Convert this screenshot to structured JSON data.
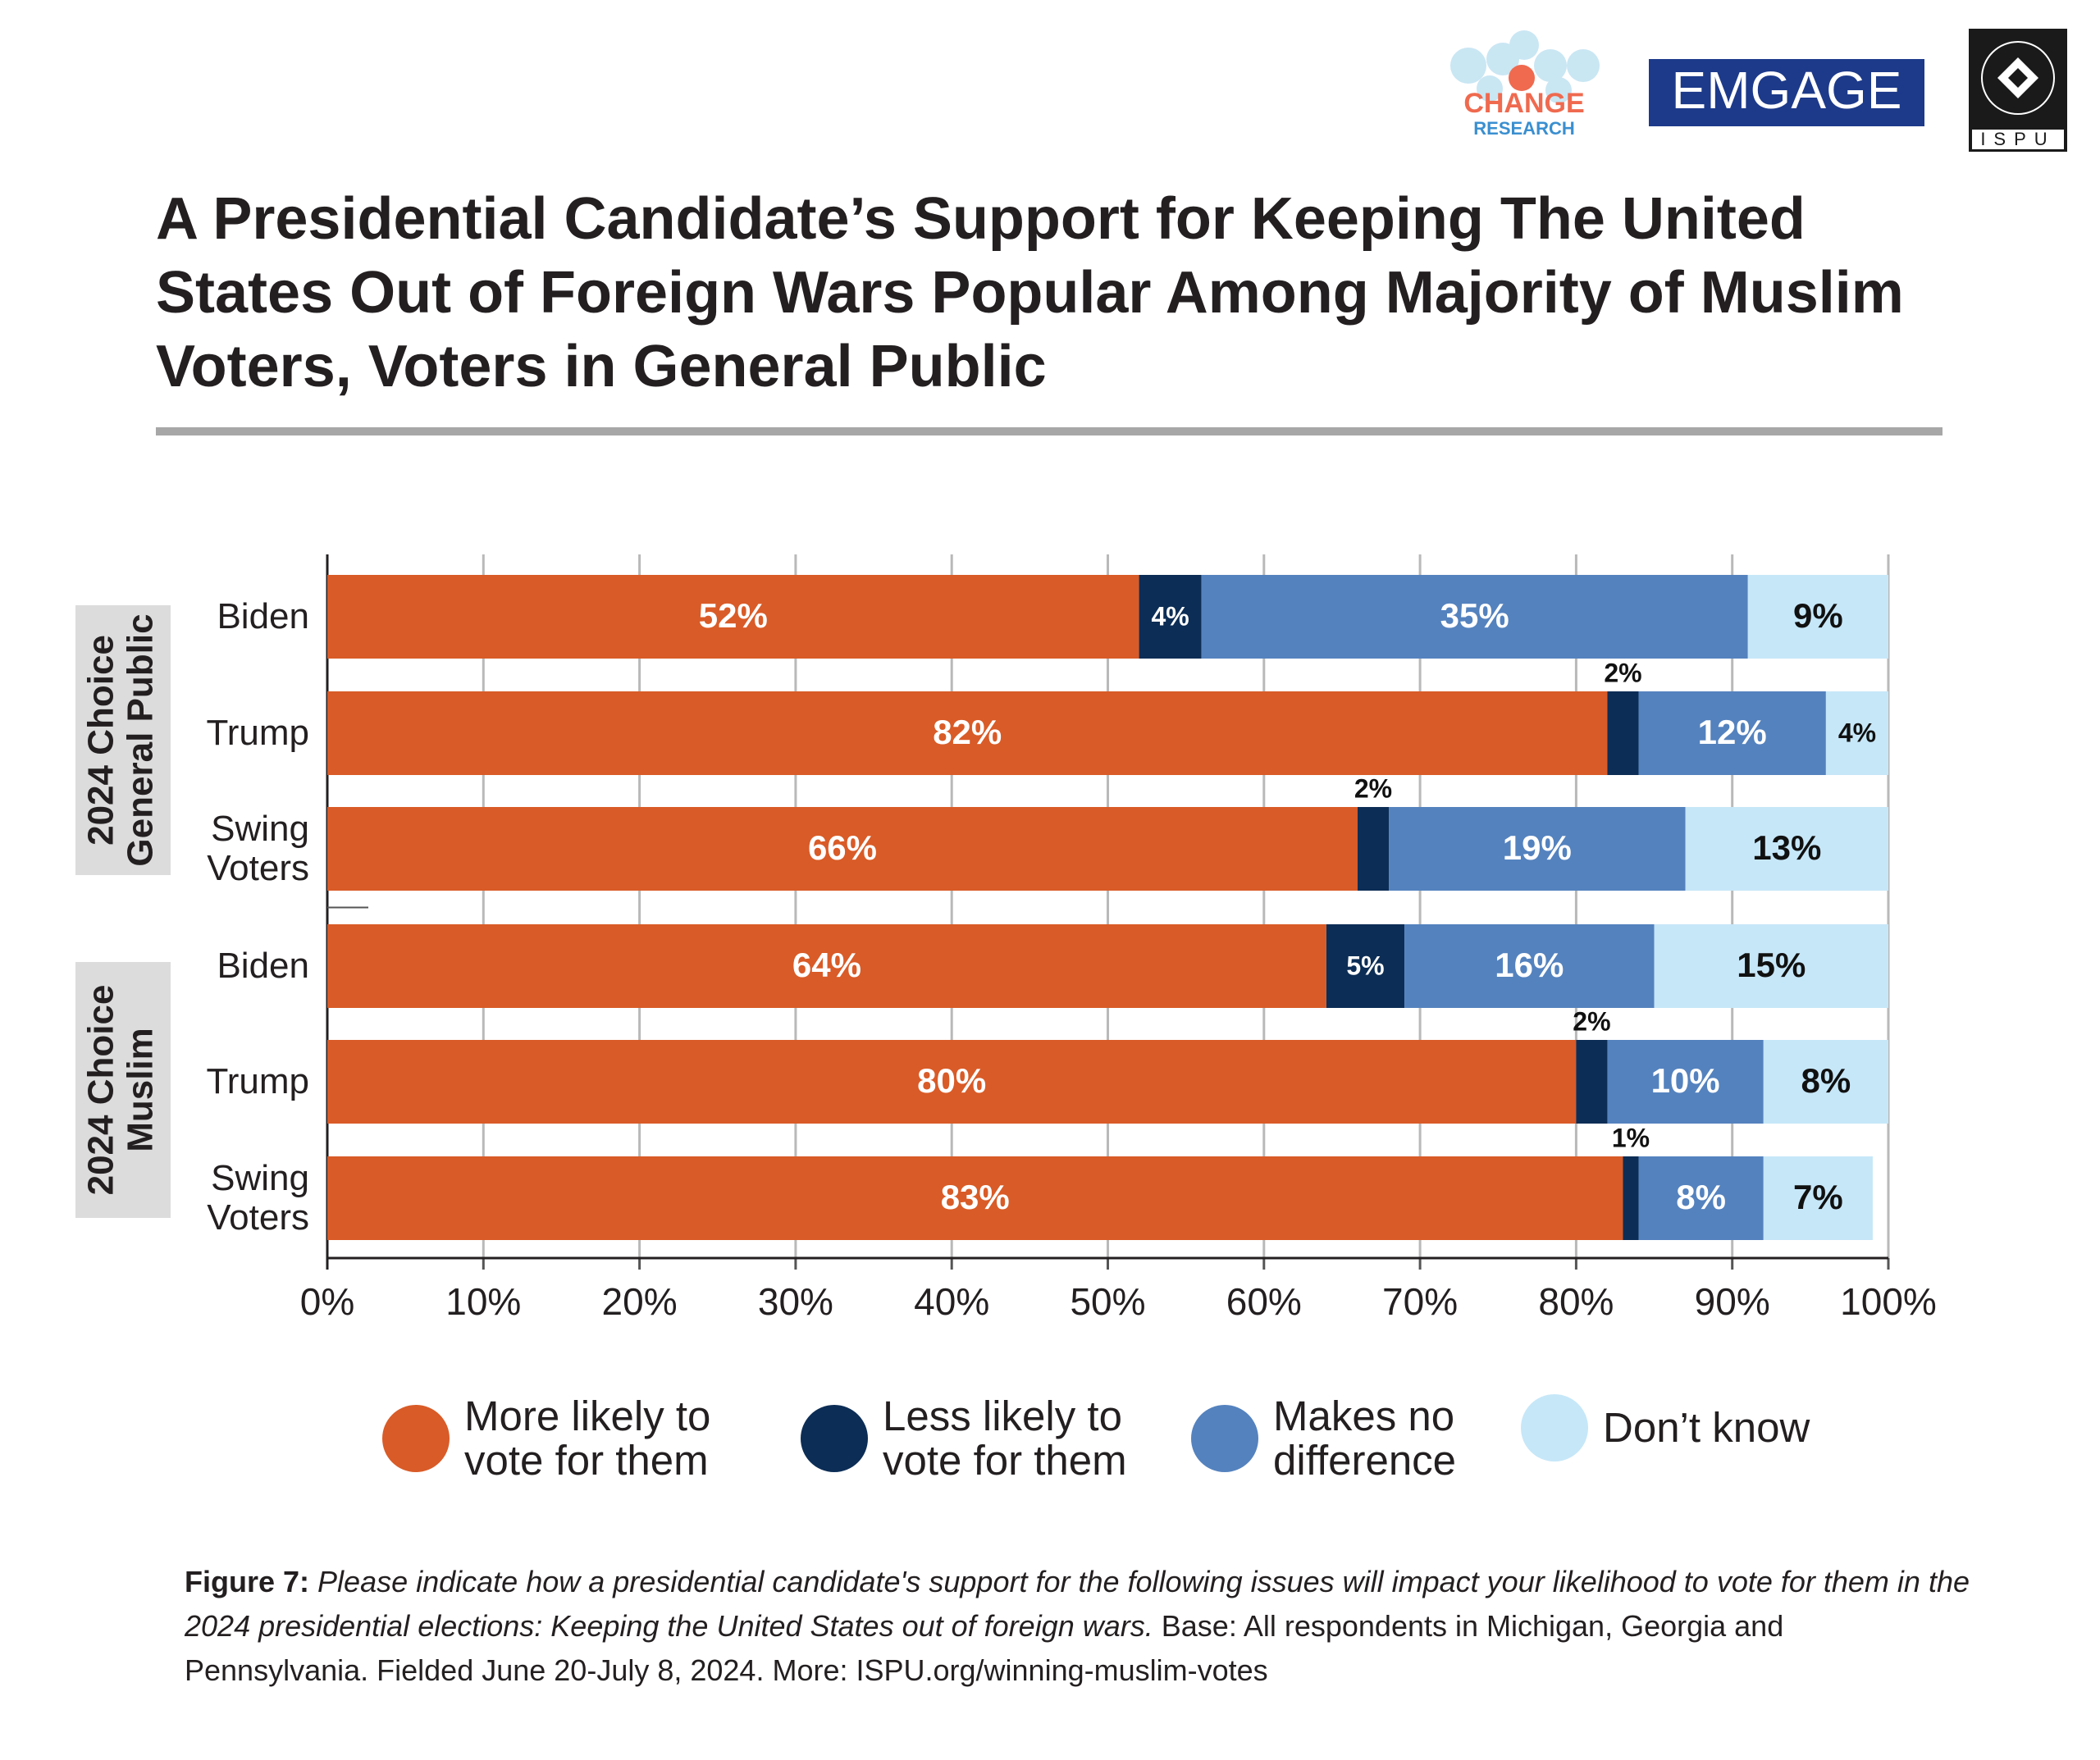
{
  "logos": {
    "change": "CHANGE",
    "research": "RESEARCH",
    "emgage": "EMGAGE",
    "ispu": "ISPU"
  },
  "title": "A Presidential Candidate’s Support for Keeping The United States Out of Foreign Wars Popular Among Majority of Muslim Voters, Voters in General Public",
  "chart_data": {
    "type": "bar",
    "orientation": "horizontal",
    "stacked": true,
    "categories": [
      "Biden",
      "Trump",
      "Swing Voters",
      "Biden",
      "Trump",
      "Swing Voters"
    ],
    "groups": [
      [
        "2024 Choice",
        "General Public"
      ],
      [
        "2024 Choice",
        "Muslim"
      ]
    ],
    "series": [
      {
        "name": "More likely to vote for them",
        "color": "#d95b27",
        "values": [
          52,
          82,
          66,
          64,
          80,
          83
        ],
        "value_labels": [
          "52%",
          "82%",
          "66%",
          "64%",
          "80%",
          "83%"
        ]
      },
      {
        "name": "Less likely to vote for them",
        "color": "#0c2d55",
        "values": [
          4,
          2,
          2,
          5,
          2,
          1
        ],
        "value_labels": [
          "4%",
          "2%",
          "2%",
          "5%",
          "2%",
          "1%"
        ]
      },
      {
        "name": "Makes no difference",
        "color": "#5482be",
        "values": [
          35,
          12,
          19,
          16,
          10,
          8
        ],
        "value_labels": [
          "35%",
          "12%",
          "19%",
          "16%",
          "10%",
          "8%"
        ]
      },
      {
        "name": "Don’t know",
        "color": "#c6e7f8",
        "values": [
          9,
          4,
          13,
          15,
          8,
          7
        ],
        "value_labels": [
          "9%",
          "4%",
          "13%",
          "15%",
          "8%",
          "7%"
        ]
      }
    ],
    "xlim": [
      0,
      100
    ],
    "xticks": [
      {
        "value": 0,
        "label": "0%"
      },
      {
        "value": 10,
        "label": "10%"
      },
      {
        "value": 20,
        "label": "20%"
      },
      {
        "value": 30,
        "label": "30%"
      },
      {
        "value": 40,
        "label": "40%"
      },
      {
        "value": 50,
        "label": "50%"
      },
      {
        "value": 60,
        "label": "60%"
      },
      {
        "value": 70,
        "label": "70%"
      },
      {
        "value": 80,
        "label": "80%"
      },
      {
        "value": 90,
        "label": "90%"
      },
      {
        "value": 100,
        "label": "100%"
      }
    ],
    "grid": true,
    "legend": "bottom"
  },
  "footnote": {
    "figure": "Figure 7:",
    "question": "Please indicate how a presidential candidate's support for the following issues will impact your likelihood to vote for them in the 2024 presidential elections: Keeping the United States out of foreign wars.",
    "base": "Base: All respondents in Michigan, Georgia and Pennsylvania. Fielded June 20-July 8, 2024. More: ISPU.org/winning-muslim-votes"
  }
}
